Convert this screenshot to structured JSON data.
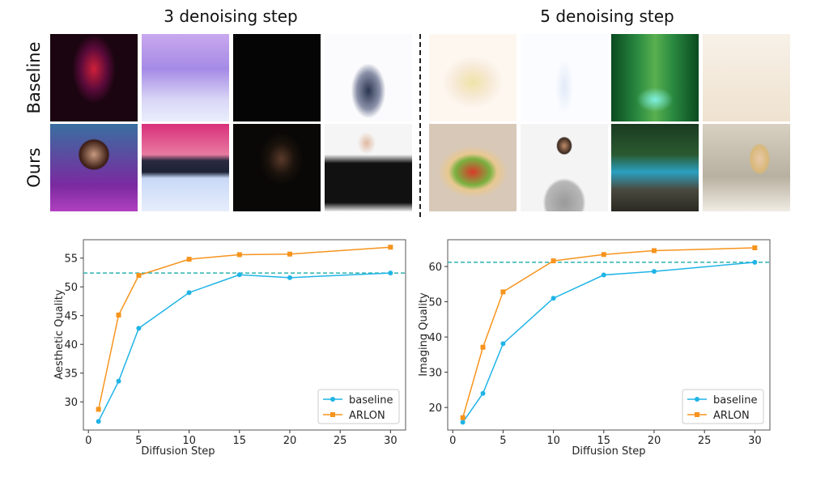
{
  "figure": {
    "left_title": "3 denoising step",
    "right_title": "5 denoising step",
    "row_labels": [
      "Baseline",
      "Ours"
    ]
  },
  "thumbnails": {
    "left_baseline": [
      "blurry red figure on dark magenta",
      "washed-out purple snowy forest",
      "black frame",
      "faint blurred man in suit"
    ],
    "left_ours": [
      "woman with dark hair in purple",
      "pink sky snowy forest",
      "dark portrait of woman",
      "man with glasses and bow tie"
    ],
    "right_baseline": [
      "pale cream blurred blob",
      "almost white frame",
      "green forest stream",
      "plain beige frame"
    ],
    "right_ours": [
      "fruit salad bowl",
      "bearded man in grey sweater",
      "blue forest stream with rocks",
      "blonde woman in kitchen"
    ]
  },
  "chart_data": [
    {
      "type": "line",
      "xlabel": "Diffusion Step",
      "ylabel": "Aesthetic Quality",
      "x": [
        1,
        3,
        5,
        10,
        15,
        20,
        30
      ],
      "xlim": [
        -0.5,
        31.5
      ],
      "ylim": [
        25.1,
        58.2
      ],
      "xticks": [
        0,
        5,
        10,
        15,
        20,
        25,
        30
      ],
      "yticks": [
        30,
        35,
        40,
        45,
        50,
        55
      ],
      "reference_line": 52.4,
      "grid": false,
      "legend": "lower-right",
      "series": [
        {
          "name": "baseline",
          "color": "#1fb4e6",
          "marker": "circle",
          "values": [
            26.6,
            33.6,
            42.8,
            49.0,
            52.1,
            51.6,
            52.4
          ]
        },
        {
          "name": "ARLON",
          "color": "#f7941d",
          "marker": "square",
          "values": [
            28.7,
            45.1,
            52.0,
            54.8,
            55.6,
            55.7,
            56.9
          ]
        }
      ]
    },
    {
      "type": "line",
      "xlabel": "Diffusion Step",
      "ylabel": "Imaging Quality",
      "x": [
        1,
        3,
        5,
        10,
        15,
        20,
        30
      ],
      "xlim": [
        -0.5,
        31.5
      ],
      "ylim": [
        13.6,
        67.6
      ],
      "xticks": [
        0,
        5,
        10,
        15,
        20,
        25,
        30
      ],
      "yticks": [
        20,
        30,
        40,
        50,
        60
      ],
      "reference_line": 61.2,
      "grid": false,
      "legend": "lower-right",
      "series": [
        {
          "name": "baseline",
          "color": "#1fb4e6",
          "marker": "circle",
          "values": [
            15.8,
            24.0,
            38.1,
            51.0,
            57.6,
            58.6,
            61.2
          ]
        },
        {
          "name": "ARLON",
          "color": "#f7941d",
          "marker": "square",
          "values": [
            17.1,
            37.1,
            52.8,
            61.6,
            63.4,
            64.5,
            65.3
          ]
        }
      ]
    }
  ],
  "reference_line_color": "#2bb3b0"
}
